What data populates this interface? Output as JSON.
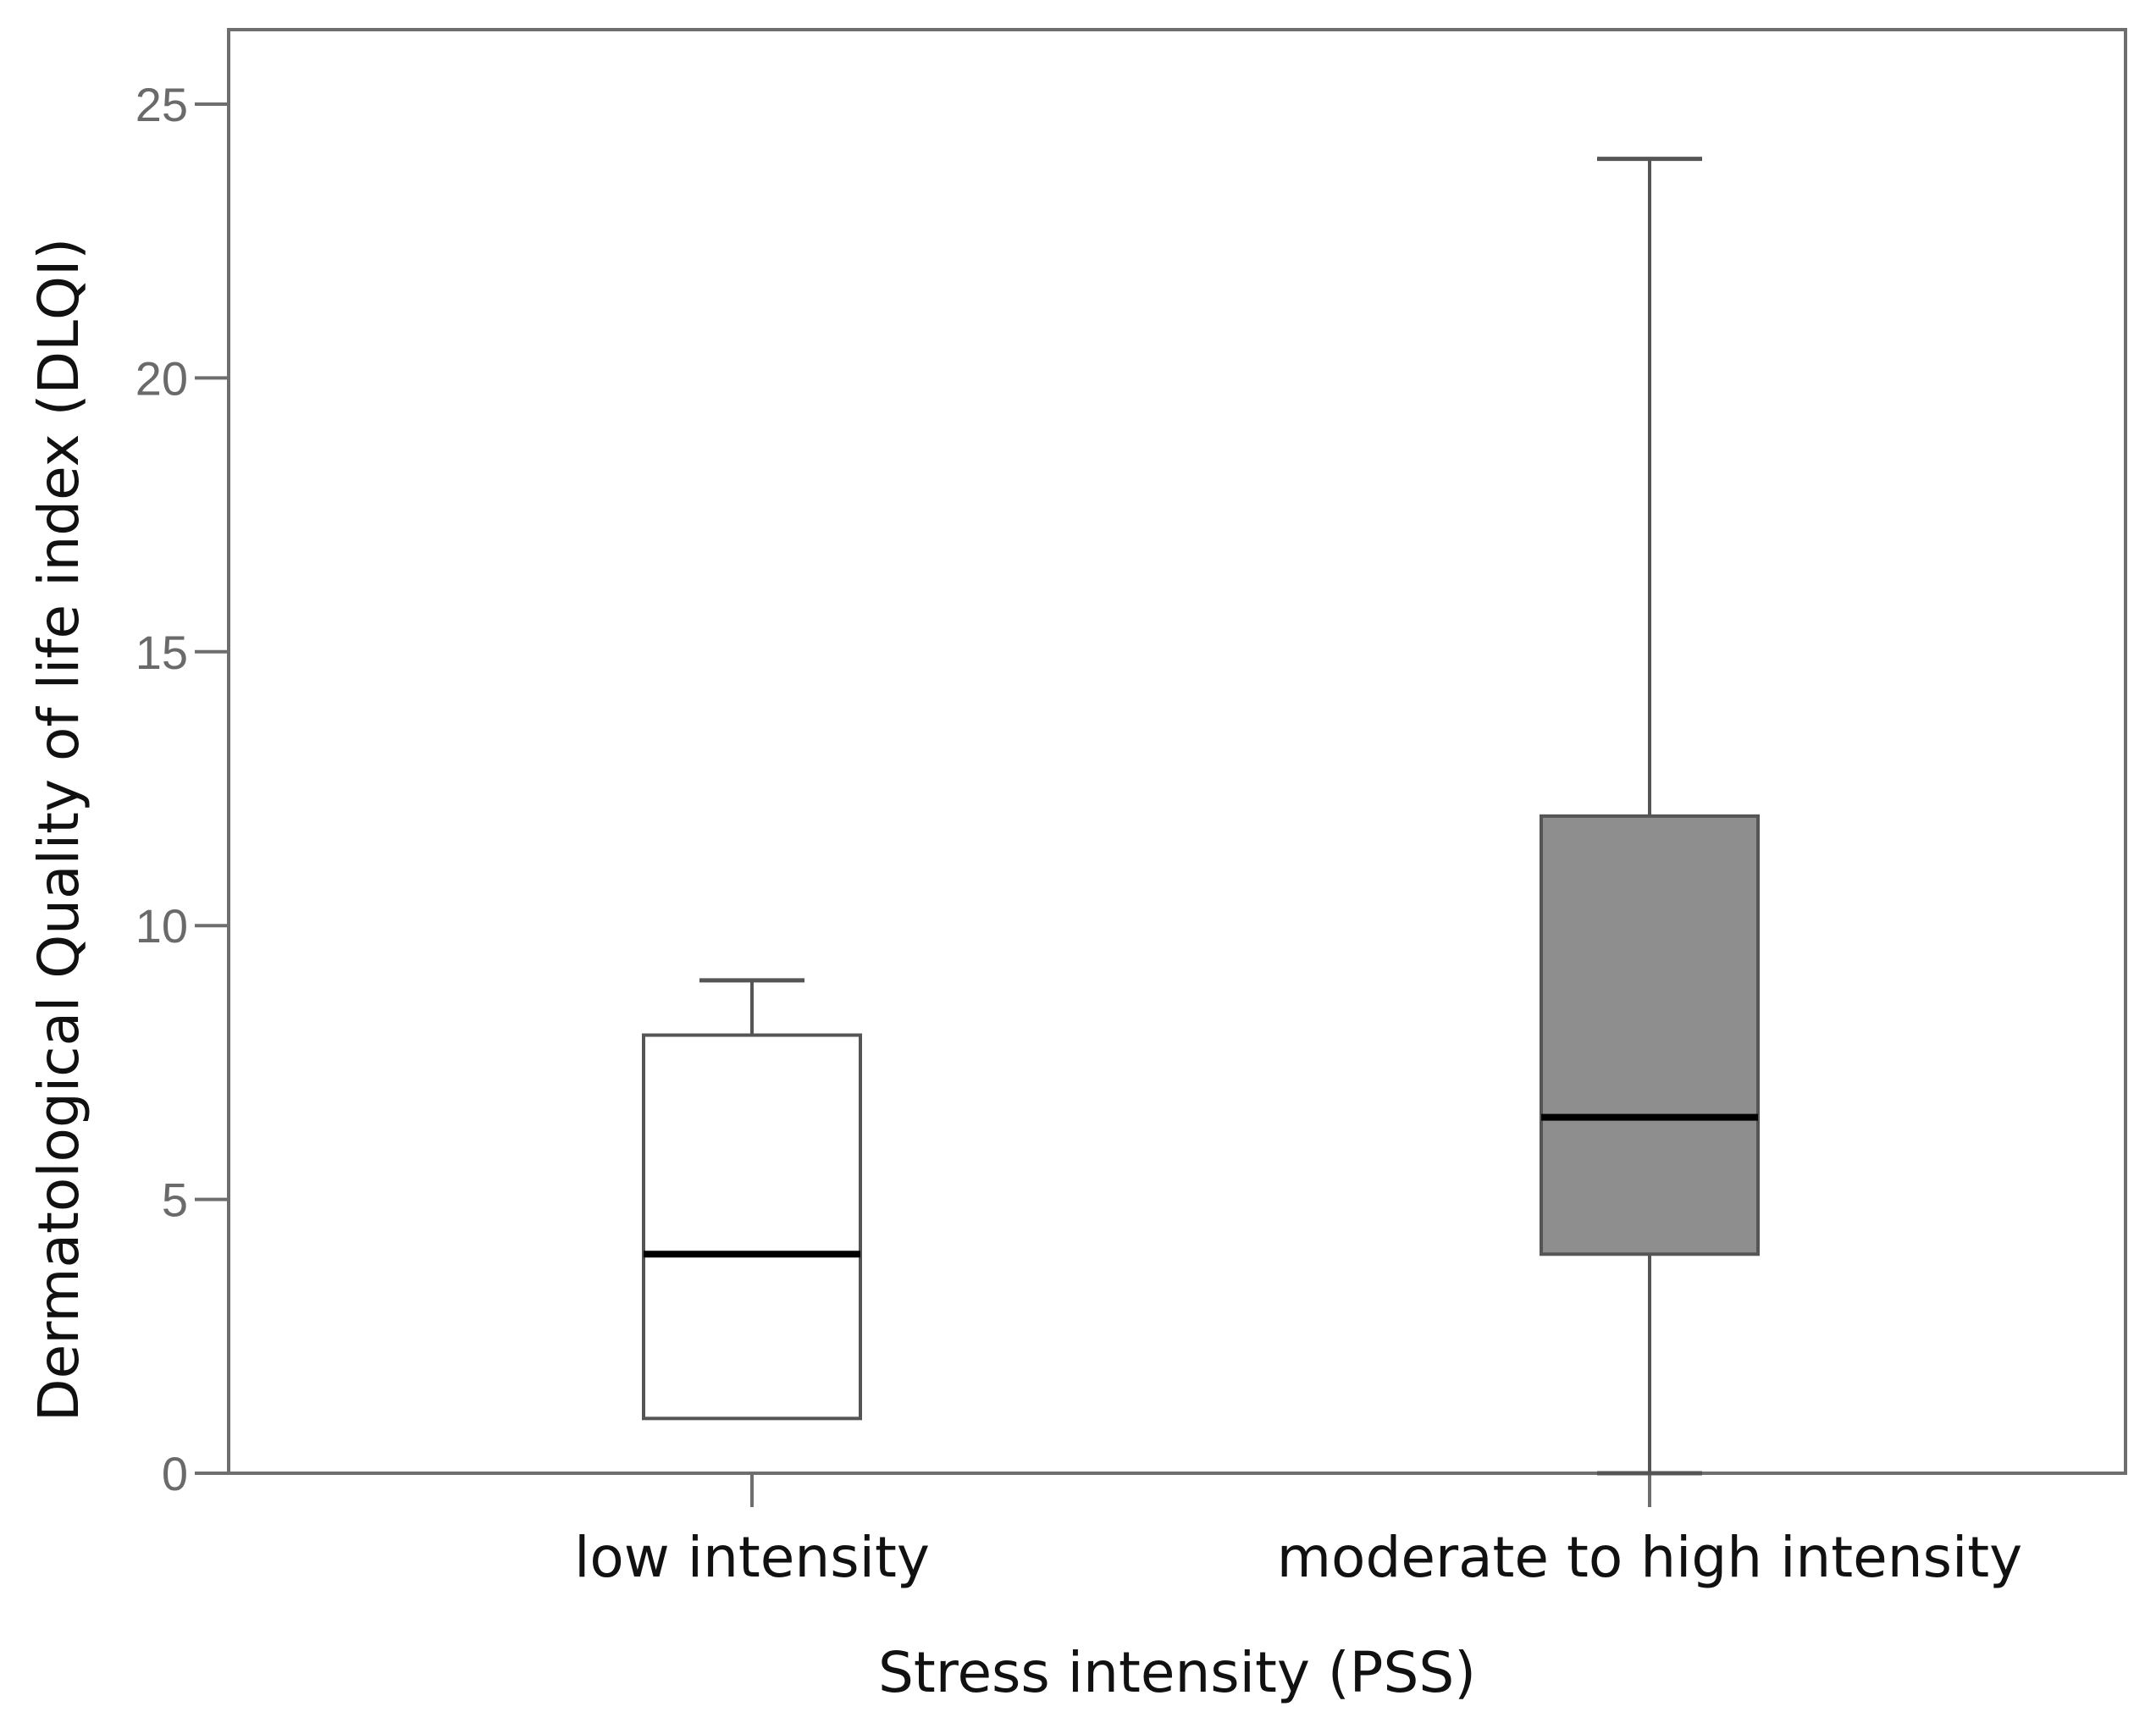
{
  "chart_data": {
    "type": "boxplot",
    "title": "",
    "xlabel": "Stress intensity (PSS)",
    "ylabel": "Dermatological Quality of life index (DLQI)",
    "ylim": [
      0,
      25
    ],
    "yticks": [
      "0",
      "5",
      "10",
      "15",
      "20",
      "25"
    ],
    "categories": [
      "low intensity",
      "moderate to high intensity"
    ],
    "boxes": [
      {
        "name": "low intensity",
        "min": 1,
        "q1": 1,
        "median": 4,
        "q3": 8,
        "max": 9,
        "fill": "#ffffff"
      },
      {
        "name": "moderate to high intensity",
        "min": 0,
        "q1": 4,
        "median": 6.5,
        "q3": 12,
        "max": 24,
        "fill": "#8e8e8e"
      }
    ],
    "grid": false,
    "colors": {
      "axis": "#6e6e6e",
      "median": "#000000",
      "whisker": "#555555",
      "box_edge": "#555555"
    }
  }
}
